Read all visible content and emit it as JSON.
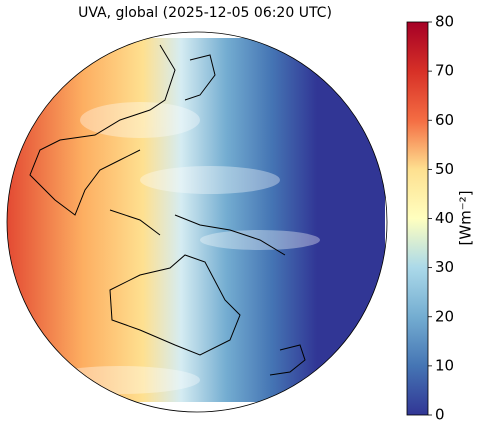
{
  "title": "UVA, global (2025-12-05 06:20 UTC)",
  "colorbar": {
    "label": "[Wm⁻²]",
    "lim": [
      0,
      80
    ],
    "ticks": [
      0,
      10,
      20,
      30,
      40,
      50,
      60,
      70,
      80
    ]
  }
}
